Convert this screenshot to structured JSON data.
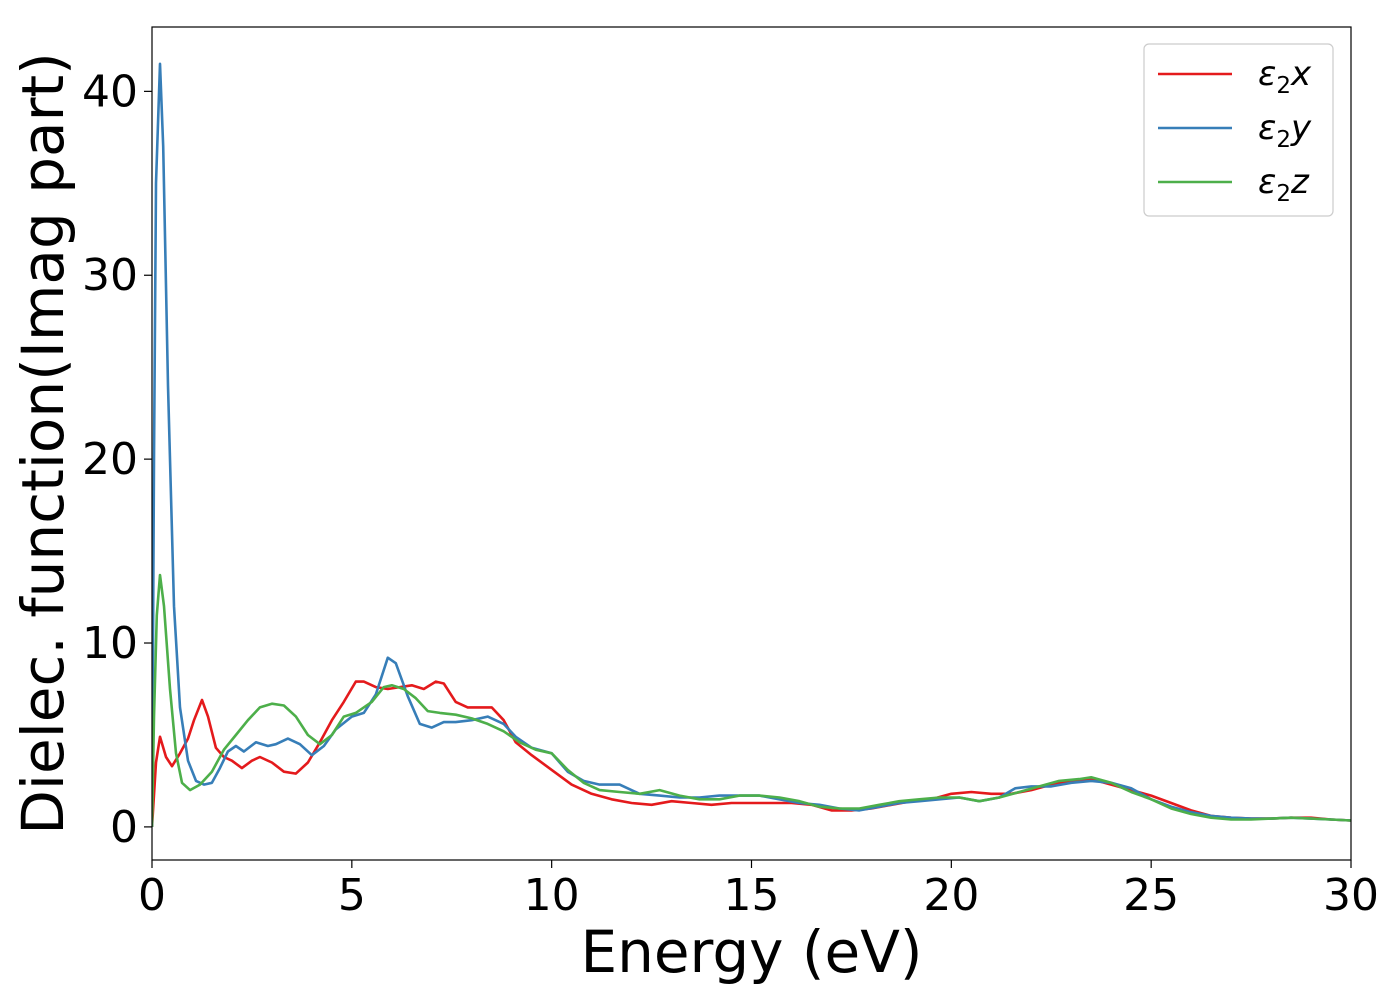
{
  "chart_data": {
    "type": "line",
    "xlabel": "Energy (eV)",
    "ylabel": "Dielec. function(Imag part)",
    "xlim": [
      0,
      30
    ],
    "ylim": [
      -1.8,
      43.5
    ],
    "xticks": [
      "0",
      "5",
      "10",
      "15",
      "20",
      "25",
      "30"
    ],
    "yticks": [
      "0",
      "10",
      "20",
      "30",
      "40"
    ],
    "grid": false,
    "legend_position": "top-right",
    "series": [
      {
        "name": "ε2x",
        "legend_base": "ε",
        "legend_sub": "2",
        "legend_tail": "x",
        "color": "#e41a1c",
        "points": [
          [
            0,
            0
          ],
          [
            0.1,
            3.5
          ],
          [
            0.2,
            4.9
          ],
          [
            0.35,
            3.8
          ],
          [
            0.5,
            3.3
          ],
          [
            0.7,
            4.0
          ],
          [
            0.9,
            4.8
          ],
          [
            1.05,
            5.8
          ],
          [
            1.25,
            6.9
          ],
          [
            1.4,
            6.0
          ],
          [
            1.6,
            4.3
          ],
          [
            1.8,
            3.8
          ],
          [
            2.0,
            3.6
          ],
          [
            2.25,
            3.2
          ],
          [
            2.5,
            3.6
          ],
          [
            2.7,
            3.8
          ],
          [
            3.0,
            3.5
          ],
          [
            3.3,
            3.0
          ],
          [
            3.6,
            2.9
          ],
          [
            3.9,
            3.5
          ],
          [
            4.2,
            4.6
          ],
          [
            4.5,
            5.8
          ],
          [
            4.8,
            6.8
          ],
          [
            5.1,
            7.9
          ],
          [
            5.3,
            7.9
          ],
          [
            5.6,
            7.6
          ],
          [
            5.9,
            7.5
          ],
          [
            6.2,
            7.6
          ],
          [
            6.5,
            7.7
          ],
          [
            6.8,
            7.5
          ],
          [
            7.1,
            7.9
          ],
          [
            7.3,
            7.8
          ],
          [
            7.6,
            6.8
          ],
          [
            7.9,
            6.5
          ],
          [
            8.2,
            6.5
          ],
          [
            8.5,
            6.5
          ],
          [
            8.8,
            5.8
          ],
          [
            9.1,
            4.6
          ],
          [
            9.5,
            3.9
          ],
          [
            10.0,
            3.1
          ],
          [
            10.5,
            2.3
          ],
          [
            11.0,
            1.8
          ],
          [
            11.5,
            1.5
          ],
          [
            12.0,
            1.3
          ],
          [
            12.5,
            1.2
          ],
          [
            13.0,
            1.4
          ],
          [
            13.5,
            1.3
          ],
          [
            14.0,
            1.2
          ],
          [
            14.5,
            1.3
          ],
          [
            15.0,
            1.3
          ],
          [
            15.5,
            1.3
          ],
          [
            16.0,
            1.3
          ],
          [
            16.5,
            1.2
          ],
          [
            17.0,
            0.9
          ],
          [
            17.5,
            0.9
          ],
          [
            18.0,
            1.0
          ],
          [
            18.5,
            1.2
          ],
          [
            19.0,
            1.4
          ],
          [
            19.5,
            1.5
          ],
          [
            20.0,
            1.8
          ],
          [
            20.5,
            1.9
          ],
          [
            21.0,
            1.8
          ],
          [
            21.5,
            1.8
          ],
          [
            22.0,
            2.0
          ],
          [
            22.5,
            2.3
          ],
          [
            23.0,
            2.5
          ],
          [
            23.5,
            2.6
          ],
          [
            24.0,
            2.3
          ],
          [
            24.5,
            2.0
          ],
          [
            25.0,
            1.7
          ],
          [
            25.5,
            1.3
          ],
          [
            26.0,
            0.9
          ],
          [
            26.5,
            0.6
          ],
          [
            27.0,
            0.5
          ],
          [
            27.5,
            0.45
          ],
          [
            28.0,
            0.45
          ],
          [
            28.5,
            0.5
          ],
          [
            29.0,
            0.5
          ],
          [
            29.5,
            0.4
          ],
          [
            30.0,
            0.35
          ]
        ]
      },
      {
        "name": "ε2y",
        "legend_base": "ε",
        "legend_sub": "2",
        "legend_tail": "y",
        "color": "#377eb8",
        "points": [
          [
            0,
            0
          ],
          [
            0.05,
            20.0
          ],
          [
            0.1,
            35.0
          ],
          [
            0.2,
            41.5
          ],
          [
            0.28,
            37.0
          ],
          [
            0.4,
            24.0
          ],
          [
            0.55,
            12.0
          ],
          [
            0.7,
            6.5
          ],
          [
            0.9,
            3.6
          ],
          [
            1.1,
            2.5
          ],
          [
            1.3,
            2.3
          ],
          [
            1.5,
            2.4
          ],
          [
            1.7,
            3.2
          ],
          [
            1.9,
            4.1
          ],
          [
            2.1,
            4.4
          ],
          [
            2.3,
            4.1
          ],
          [
            2.6,
            4.6
          ],
          [
            2.9,
            4.4
          ],
          [
            3.1,
            4.5
          ],
          [
            3.4,
            4.8
          ],
          [
            3.7,
            4.5
          ],
          [
            4.0,
            3.9
          ],
          [
            4.3,
            4.4
          ],
          [
            4.6,
            5.3
          ],
          [
            5.0,
            6.0
          ],
          [
            5.3,
            6.2
          ],
          [
            5.6,
            7.2
          ],
          [
            5.9,
            9.2
          ],
          [
            6.1,
            8.9
          ],
          [
            6.4,
            7.1
          ],
          [
            6.7,
            5.6
          ],
          [
            7.0,
            5.4
          ],
          [
            7.3,
            5.7
          ],
          [
            7.6,
            5.7
          ],
          [
            8.0,
            5.8
          ],
          [
            8.4,
            6.0
          ],
          [
            8.8,
            5.6
          ],
          [
            9.1,
            4.9
          ],
          [
            9.5,
            4.3
          ],
          [
            10.0,
            4.0
          ],
          [
            10.4,
            3.0
          ],
          [
            10.8,
            2.5
          ],
          [
            11.2,
            2.3
          ],
          [
            11.7,
            2.3
          ],
          [
            12.2,
            1.8
          ],
          [
            12.7,
            1.7
          ],
          [
            13.2,
            1.6
          ],
          [
            13.7,
            1.6
          ],
          [
            14.2,
            1.7
          ],
          [
            14.7,
            1.7
          ],
          [
            15.2,
            1.7
          ],
          [
            15.7,
            1.5
          ],
          [
            16.2,
            1.3
          ],
          [
            16.7,
            1.2
          ],
          [
            17.2,
            1.0
          ],
          [
            17.7,
            0.9
          ],
          [
            18.2,
            1.1
          ],
          [
            18.7,
            1.3
          ],
          [
            19.2,
            1.4
          ],
          [
            19.7,
            1.5
          ],
          [
            20.2,
            1.6
          ],
          [
            20.7,
            1.4
          ],
          [
            21.2,
            1.6
          ],
          [
            21.6,
            2.1
          ],
          [
            22.0,
            2.2
          ],
          [
            22.5,
            2.2
          ],
          [
            23.0,
            2.4
          ],
          [
            23.5,
            2.5
          ],
          [
            24.0,
            2.4
          ],
          [
            24.5,
            2.1
          ],
          [
            25.0,
            1.5
          ],
          [
            25.5,
            1.1
          ],
          [
            26.0,
            0.8
          ],
          [
            26.5,
            0.6
          ],
          [
            27.0,
            0.5
          ],
          [
            27.5,
            0.45
          ],
          [
            28.0,
            0.45
          ],
          [
            28.5,
            0.5
          ],
          [
            29.0,
            0.45
          ],
          [
            29.5,
            0.4
          ],
          [
            30.0,
            0.35
          ]
        ]
      },
      {
        "name": "ε2z",
        "legend_base": "ε",
        "legend_sub": "2",
        "legend_tail": "z",
        "color": "#4daf4a",
        "points": [
          [
            0,
            0
          ],
          [
            0.05,
            6.0
          ],
          [
            0.12,
            11.5
          ],
          [
            0.2,
            13.7
          ],
          [
            0.3,
            12.0
          ],
          [
            0.45,
            7.5
          ],
          [
            0.6,
            4.0
          ],
          [
            0.75,
            2.4
          ],
          [
            0.95,
            2.0
          ],
          [
            1.2,
            2.3
          ],
          [
            1.5,
            3.0
          ],
          [
            1.8,
            4.2
          ],
          [
            2.1,
            5.0
          ],
          [
            2.4,
            5.8
          ],
          [
            2.7,
            6.5
          ],
          [
            3.0,
            6.7
          ],
          [
            3.3,
            6.6
          ],
          [
            3.6,
            6.0
          ],
          [
            3.9,
            5.0
          ],
          [
            4.2,
            4.5
          ],
          [
            4.5,
            5.0
          ],
          [
            4.8,
            6.0
          ],
          [
            5.1,
            6.2
          ],
          [
            5.5,
            6.8
          ],
          [
            5.8,
            7.6
          ],
          [
            6.0,
            7.7
          ],
          [
            6.3,
            7.5
          ],
          [
            6.6,
            7.0
          ],
          [
            6.9,
            6.3
          ],
          [
            7.2,
            6.2
          ],
          [
            7.6,
            6.1
          ],
          [
            8.0,
            5.9
          ],
          [
            8.4,
            5.6
          ],
          [
            8.8,
            5.2
          ],
          [
            9.2,
            4.6
          ],
          [
            9.6,
            4.2
          ],
          [
            10.0,
            4.0
          ],
          [
            10.4,
            3.1
          ],
          [
            10.8,
            2.4
          ],
          [
            11.2,
            2.0
          ],
          [
            11.7,
            1.9
          ],
          [
            12.2,
            1.8
          ],
          [
            12.7,
            2.0
          ],
          [
            13.2,
            1.7
          ],
          [
            13.7,
            1.5
          ],
          [
            14.2,
            1.5
          ],
          [
            14.7,
            1.7
          ],
          [
            15.2,
            1.7
          ],
          [
            15.7,
            1.6
          ],
          [
            16.2,
            1.4
          ],
          [
            16.7,
            1.1
          ],
          [
            17.2,
            1.0
          ],
          [
            17.7,
            1.0
          ],
          [
            18.2,
            1.2
          ],
          [
            18.7,
            1.4
          ],
          [
            19.2,
            1.5
          ],
          [
            19.7,
            1.6
          ],
          [
            20.2,
            1.6
          ],
          [
            20.7,
            1.4
          ],
          [
            21.2,
            1.6
          ],
          [
            21.7,
            1.9
          ],
          [
            22.2,
            2.2
          ],
          [
            22.7,
            2.5
          ],
          [
            23.2,
            2.6
          ],
          [
            23.5,
            2.7
          ],
          [
            24.0,
            2.4
          ],
          [
            24.5,
            1.9
          ],
          [
            25.0,
            1.5
          ],
          [
            25.5,
            1.0
          ],
          [
            26.0,
            0.7
          ],
          [
            26.5,
            0.5
          ],
          [
            27.0,
            0.4
          ],
          [
            27.5,
            0.4
          ],
          [
            28.0,
            0.45
          ],
          [
            28.5,
            0.5
          ],
          [
            29.0,
            0.45
          ],
          [
            29.5,
            0.4
          ],
          [
            30.0,
            0.35
          ]
        ]
      }
    ]
  }
}
